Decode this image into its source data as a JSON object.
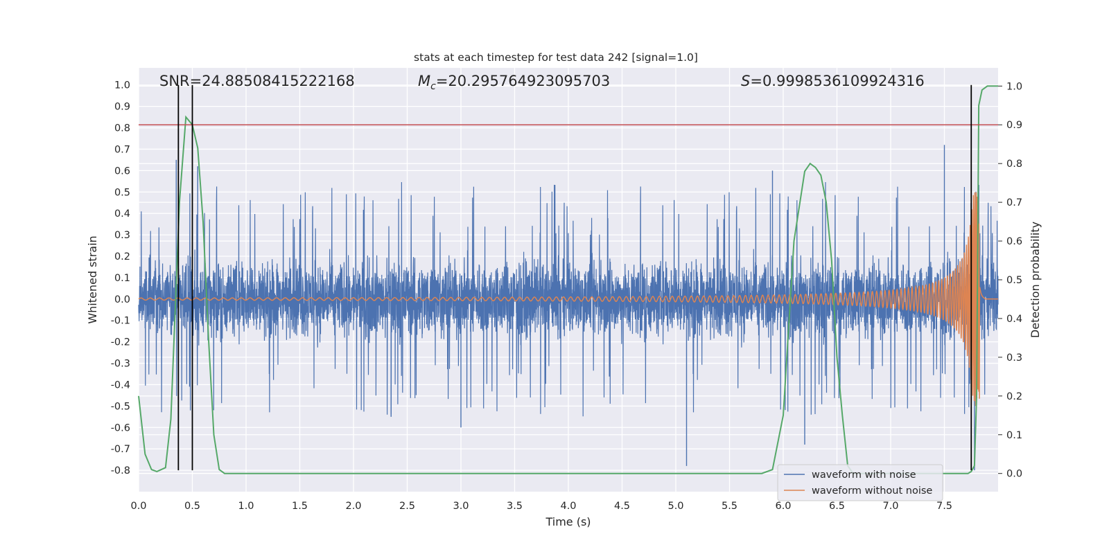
{
  "chart_data": {
    "type": "line",
    "title": "stats at each timestep for test data 242 [signal=1.0]",
    "xlabel": "Time (s)",
    "ylabel": "Whitened strain",
    "y2label": "Detection probability",
    "xlim": [
      0.0,
      8.0
    ],
    "ylim": [
      -0.9,
      1.08
    ],
    "y2lim": [
      -0.047,
      1.047
    ],
    "xticks": [
      0.0,
      0.5,
      1.0,
      1.5,
      2.0,
      2.5,
      3.0,
      3.5,
      4.0,
      4.5,
      5.0,
      5.5,
      6.0,
      6.5,
      7.0,
      7.5
    ],
    "xtick_labels": [
      "0.0",
      "0.5",
      "1.0",
      "1.5",
      "2.0",
      "2.5",
      "3.0",
      "3.5",
      "4.0",
      "4.5",
      "5.0",
      "5.5",
      "6.0",
      "6.5",
      "7.0",
      "7.5"
    ],
    "yticks": [
      1.0,
      0.9,
      0.8,
      0.7,
      0.6,
      0.5,
      0.4,
      0.3,
      0.2,
      0.1,
      0.0,
      -0.1,
      -0.2,
      -0.3,
      -0.4,
      -0.5,
      -0.6,
      -0.7,
      -0.8
    ],
    "ytick_labels": [
      "1.0",
      "0.9",
      "0.8",
      "0.7",
      "0.6",
      "0.5",
      "0.4",
      "0.3",
      "0.2",
      "0.1",
      "0.0",
      "-0.1",
      "-0.2",
      "-0.3",
      "-0.4",
      "-0.5",
      "-0.6",
      "-0.7",
      "-0.8"
    ],
    "y2ticks": [
      1.0,
      0.9,
      0.8,
      0.7,
      0.6,
      0.5,
      0.4,
      0.3,
      0.2,
      0.1,
      0.0
    ],
    "y2tick_labels": [
      "1.0",
      "0.9",
      "0.8",
      "0.7",
      "0.6",
      "0.5",
      "0.4",
      "0.3",
      "0.2",
      "0.1",
      "0.0"
    ],
    "annotations": {
      "snr": "SNR=24.88508415222168",
      "mc_symbol": "M",
      "mc_sub": "c",
      "mc_value": "=20.295764923095703",
      "s_symbol": "S",
      "s_value": "=0.9998536109924316"
    },
    "threshold_y2": 0.9,
    "event_lines_x": [
      0.37,
      0.5,
      7.75
    ],
    "series": [
      {
        "name": "waveform with noise",
        "color": "#4c72b0",
        "noise_amplitude": 0.3,
        "spikes": [
          {
            "x": 0.35,
            "y": 0.65
          },
          {
            "x": 0.55,
            "y": 0.62
          },
          {
            "x": 5.1,
            "y": -0.78
          },
          {
            "x": 6.2,
            "y": -0.68
          },
          {
            "x": 5.9,
            "y": 0.6
          },
          {
            "x": 7.5,
            "y": 0.72
          },
          {
            "x": 7.78,
            "y": -0.8
          },
          {
            "x": 3.0,
            "y": -0.6
          },
          {
            "x": 2.35,
            "y": -0.55
          }
        ]
      },
      {
        "name": "waveform without noise",
        "color": "#dd8452",
        "chirp_start_amp": 0.005,
        "chirp_end_amp": 0.5,
        "chirp_merger_time": 7.83,
        "chirp_end_time": 7.88
      },
      {
        "name": "detection probability",
        "color": "#55a868",
        "axis": "right",
        "x": [
          0.0,
          0.06,
          0.12,
          0.17,
          0.25,
          0.3,
          0.38,
          0.44,
          0.5,
          0.55,
          0.6,
          0.65,
          0.7,
          0.75,
          0.8,
          1.0,
          2.0,
          3.0,
          4.0,
          5.0,
          5.8,
          5.9,
          6.0,
          6.1,
          6.2,
          6.25,
          6.3,
          6.35,
          6.4,
          6.45,
          6.5,
          6.55,
          6.6,
          6.65,
          7.0,
          7.5,
          7.72,
          7.75,
          7.78,
          7.8,
          7.82,
          7.85,
          7.9,
          7.95,
          8.0
        ],
        "y": [
          0.2,
          0.05,
          0.01,
          0.005,
          0.015,
          0.14,
          0.7,
          0.92,
          0.9,
          0.84,
          0.65,
          0.35,
          0.1,
          0.01,
          0.0,
          0.0,
          0.0,
          0.0,
          0.0,
          0.0,
          0.0,
          0.01,
          0.15,
          0.6,
          0.78,
          0.8,
          0.79,
          0.77,
          0.7,
          0.55,
          0.3,
          0.15,
          0.02,
          0.0,
          0.0,
          0.0,
          0.0,
          0.005,
          0.02,
          0.2,
          0.95,
          0.99,
          1.0,
          1.0,
          1.0
        ]
      }
    ],
    "legend": {
      "placement": "bottom-right",
      "entries": [
        {
          "label": "waveform with noise",
          "color": "#4c72b0"
        },
        {
          "label": "waveform without noise",
          "color": "#dd8452"
        }
      ]
    },
    "colors": {
      "plot_bg": "#eaeaf2",
      "grid": "#ffffff",
      "threshold": "#c44e52",
      "event_line": "#000000",
      "text": "#262626"
    }
  }
}
